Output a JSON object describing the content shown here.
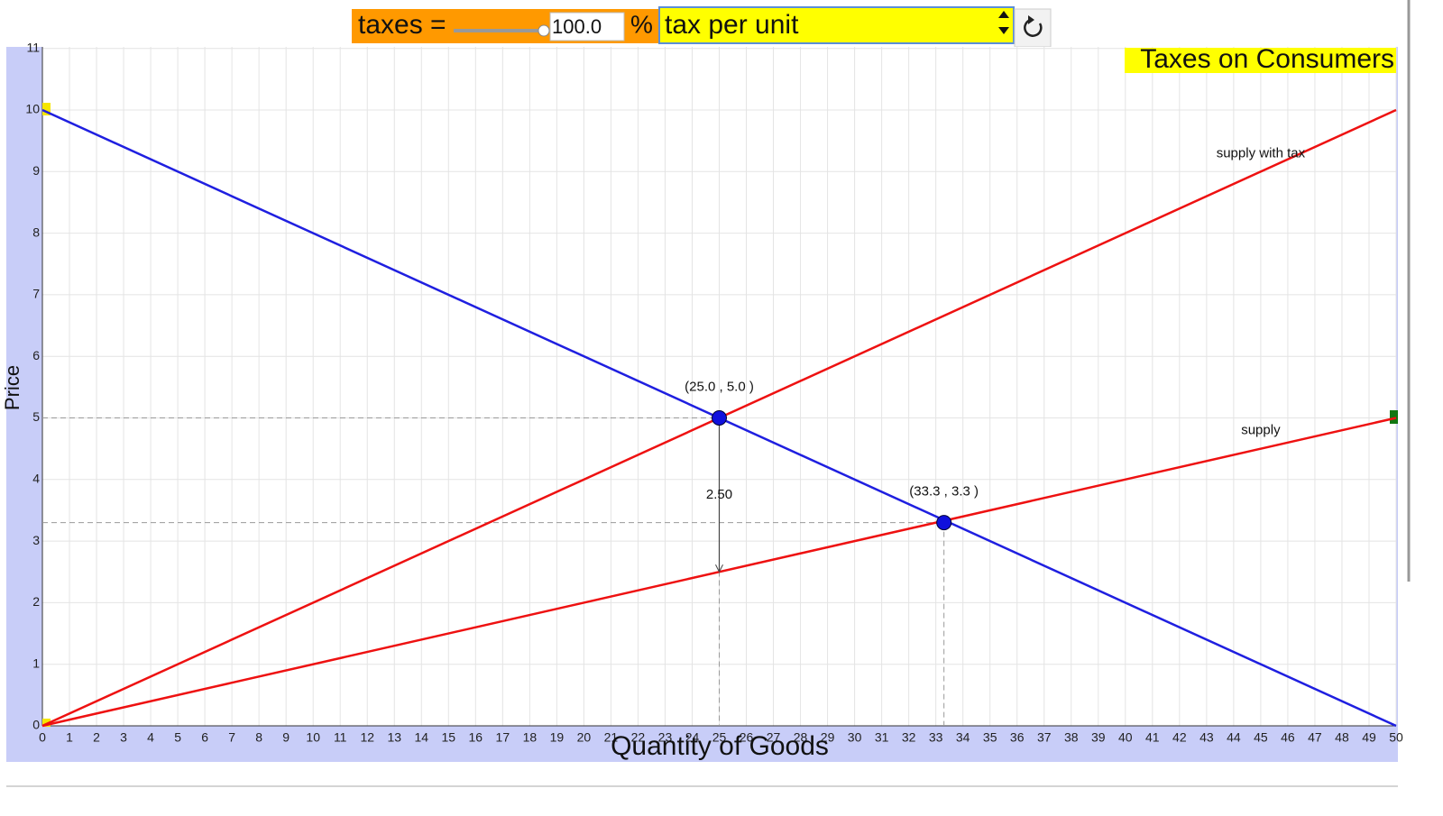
{
  "controls": {
    "taxes_label": "taxes =",
    "taxes": {
      "value": 100,
      "label": "100.0"
    },
    "slider_range": [
      0,
      100
    ],
    "unit": "%",
    "select": "tax per unit"
  },
  "chart_data": {
    "type": "line",
    "title": "Taxes on Consumers",
    "x_label": "Quantity of Goods",
    "y_label": "Price",
    "x": [
      0,
      50
    ],
    "series": [
      {
        "color": "#1f1fe0",
        "values": [
          10,
          0
        ]
      },
      {
        "name": "supply with tax",
        "color": "#ee1111",
        "values": [
          0,
          10
        ]
      },
      {
        "name": "supply",
        "color": "#ee1111",
        "values": [
          0,
          5
        ]
      }
    ],
    "points": [
      {
        "x": 25,
        "y": 5,
        "label": "(25.0 , 5.0 )"
      },
      {
        "x": 33.3,
        "y": 3.3,
        "label": "(33.3 , 3.3 )"
      }
    ],
    "point_color": "#1010dd",
    "tax_arrow": {
      "x": 25,
      "from": 5,
      "to": 2.5,
      "label": "2.50"
    },
    "xlim": [
      0,
      50
    ],
    "ylim": [
      0,
      11
    ],
    "xticks": [
      0,
      1,
      2,
      3,
      4,
      5,
      6,
      7,
      8,
      9,
      10,
      11,
      12,
      13,
      14,
      15,
      16,
      17,
      18,
      19,
      20,
      21,
      22,
      23,
      24,
      25,
      26,
      27,
      28,
      29,
      30,
      31,
      32,
      33,
      34,
      35,
      36,
      37,
      38,
      39,
      40,
      41,
      42,
      43,
      44,
      45,
      46,
      47,
      48,
      49,
      50
    ],
    "yticks": [
      0,
      1,
      2,
      3,
      4,
      5,
      6,
      7,
      8,
      9,
      10,
      11
    ],
    "grid": true
  }
}
